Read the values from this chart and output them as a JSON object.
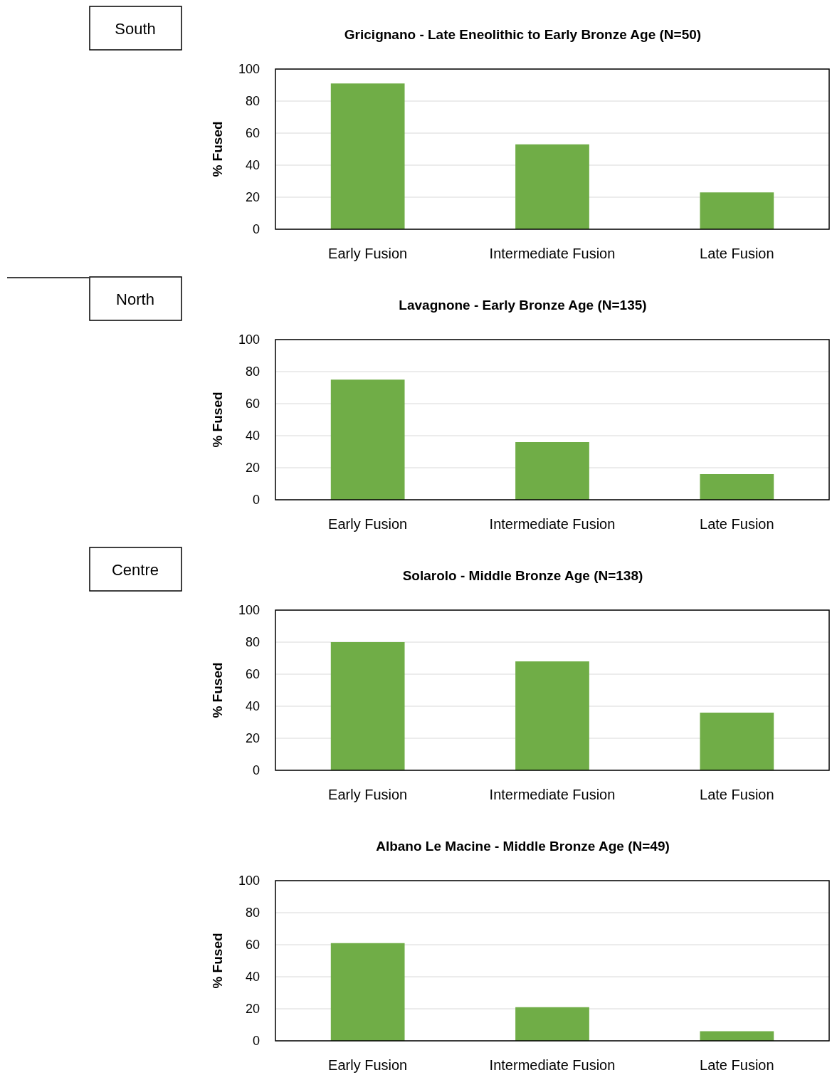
{
  "chart_data": [
    {
      "type": "bar",
      "title": "Gricignano - Late Eneolithic to Early Bronze Age (N=50)",
      "ylabel": "% Fused",
      "categories": [
        "Early Fusion",
        "Intermediate Fusion",
        "Late Fusion"
      ],
      "values": [
        91,
        53,
        23
      ],
      "color": "#70ad47",
      "ylim": [
        0,
        100
      ],
      "yticks": [
        0,
        20,
        40,
        60,
        80,
        100
      ],
      "grid": "y",
      "annotations": [
        "South"
      ]
    },
    {
      "type": "bar",
      "title": "Lavagnone - Early Bronze Age (N=135)",
      "ylabel": "% Fused",
      "categories": [
        "Early Fusion",
        "Intermediate Fusion",
        "Late Fusion"
      ],
      "values": [
        75,
        36,
        16
      ],
      "color": "#70ad47",
      "ylim": [
        0,
        100
      ],
      "yticks": [
        0,
        20,
        40,
        60,
        80,
        100
      ],
      "grid": "y",
      "annotations": [
        "North"
      ]
    },
    {
      "type": "bar",
      "title": "Solarolo - Middle Bronze Age (N=138)",
      "ylabel": "% Fused",
      "categories": [
        "Early Fusion",
        "Intermediate Fusion",
        "Late Fusion"
      ],
      "values": [
        80,
        68,
        36
      ],
      "color": "#70ad47",
      "ylim": [
        0,
        100
      ],
      "yticks": [
        0,
        20,
        40,
        60,
        80,
        100
      ],
      "grid": "y",
      "annotations": [
        "Centre"
      ]
    },
    {
      "type": "bar",
      "title": "Albano Le Macine - Middle Bronze Age (N=49)",
      "ylabel": "% Fused",
      "categories": [
        "Early Fusion",
        "Intermediate Fusion",
        "Late Fusion"
      ],
      "values": [
        61,
        21,
        6
      ],
      "color": "#70ad47",
      "ylim": [
        0,
        100
      ],
      "yticks": [
        0,
        20,
        40,
        60,
        80,
        100
      ],
      "grid": "y"
    }
  ]
}
